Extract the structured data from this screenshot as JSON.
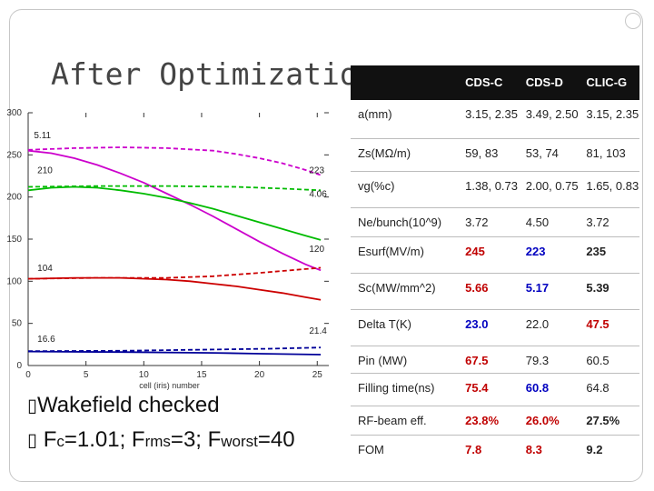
{
  "slide": {
    "title": "After Optimization",
    "bullets": [
      {
        "mark": "",
        "text": "Wakefield checked",
        "parts": null
      },
      {
        "mark": "",
        "text": null,
        "parts": [
          {
            "t": "F",
            "sub": false
          },
          {
            "t": "c",
            "sub": true
          },
          {
            "t": "=1.01; F",
            "sub": false
          },
          {
            "t": "rms",
            "sub": true
          },
          {
            "t": "=3; F",
            "sub": false
          },
          {
            "t": "worst",
            "sub": true
          },
          {
            "t": "=40",
            "sub": false
          }
        ]
      }
    ]
  },
  "table": {
    "headers": [
      "",
      "CDS-C",
      "CDS-D",
      "CLIC-G"
    ],
    "rows": [
      {
        "label": "a(mm)",
        "values": [
          "3.15, 2.35",
          "3.49, 2.50",
          "3.15, 2.35"
        ],
        "styles": [
          "",
          "",
          ""
        ],
        "height": 42
      },
      {
        "label": "Zs(MΩ/m)",
        "values": [
          "59, 83",
          "53, 74",
          "81, 103"
        ],
        "styles": [
          "",
          "",
          ""
        ],
        "height": 36
      },
      {
        "label": "vg(%c)",
        "values": [
          "1.38, 0.73",
          "2.00, 0.75",
          "1.65, 0.83"
        ],
        "styles": [
          "",
          "",
          ""
        ],
        "height": 40
      },
      {
        "label": "Ne/bunch(10^9)",
        "values": [
          "3.72",
          "4.50",
          "3.72"
        ],
        "styles": [
          "",
          "",
          ""
        ],
        "height": 32
      },
      {
        "label": "Esurf(MV/m)",
        "values": [
          "245",
          "223",
          "235"
        ],
        "styles": [
          "red",
          "blue",
          "blk"
        ],
        "height": 40
      },
      {
        "label": "Sc(MW/mm^2)",
        "values": [
          "5.66",
          "5.17",
          "5.39"
        ],
        "styles": [
          "red",
          "blue",
          "blk"
        ],
        "height": 40
      },
      {
        "label": "Delta T(K)",
        "values": [
          "23.0",
          "22.0",
          "47.5"
        ],
        "styles": [
          "blue",
          "",
          "red"
        ],
        "height": 40
      },
      {
        "label": "Pin (MW)",
        "values": [
          "67.5",
          "79.3",
          "60.5"
        ],
        "styles": [
          "red",
          "",
          ""
        ],
        "height": 30
      },
      {
        "label": "Filling time(ns)",
        "values": [
          "75.4",
          "60.8",
          "64.8"
        ],
        "styles": [
          "red",
          "blue",
          ""
        ],
        "height": 36
      },
      {
        "label": "RF-beam eff.",
        "values": [
          "23.8%",
          "26.0%",
          "27.5%"
        ],
        "styles": [
          "red",
          "red",
          "blk"
        ],
        "height": 32
      },
      {
        "label": "FOM",
        "values": [
          "7.8",
          "8.3",
          "9.2"
        ],
        "styles": [
          "red",
          "red",
          "blk"
        ],
        "height": 40
      }
    ]
  },
  "chart_data": {
    "type": "line",
    "title": "",
    "xlabel": "cell (iris) number",
    "ylabel": "",
    "xlim": [
      0,
      26
    ],
    "ylim": [
      0,
      300
    ],
    "xticks": [
      0,
      5,
      10,
      15,
      20,
      25
    ],
    "yticks": [
      0,
      50,
      100,
      150,
      200,
      250,
      300
    ],
    "series": [
      {
        "color": "#cc00cc",
        "dash": false,
        "x": [
          0,
          2,
          4,
          6,
          8,
          10,
          12,
          14,
          16,
          18,
          20,
          22,
          24,
          25.3
        ],
        "y": [
          255,
          252,
          246,
          238,
          228,
          217,
          204,
          191,
          177,
          162,
          147,
          133,
          120,
          113
        ]
      },
      {
        "color": "#cc00cc",
        "dash": true,
        "x": [
          0,
          4,
          8,
          12,
          16,
          18,
          20,
          22,
          24,
          25.3
        ],
        "y": [
          256,
          258,
          259,
          258,
          255,
          251,
          246,
          240,
          232,
          226
        ]
      },
      {
        "color": "#00bb00",
        "dash": false,
        "x": [
          0,
          2,
          4,
          6,
          8,
          10,
          12,
          14,
          16,
          18,
          20,
          22,
          24,
          25.3
        ],
        "y": [
          208,
          211,
          212,
          211,
          208,
          204,
          199,
          193,
          186,
          178,
          170,
          162,
          154,
          149
        ]
      },
      {
        "color": "#00bb00",
        "dash": true,
        "x": [
          0,
          6,
          12,
          18,
          22,
          25.3
        ],
        "y": [
          212,
          213,
          213,
          212,
          210,
          208
        ]
      },
      {
        "color": "#cc0000",
        "dash": false,
        "x": [
          0,
          4,
          8,
          12,
          14,
          16,
          18,
          20,
          22,
          24,
          25.3
        ],
        "y": [
          103,
          104,
          104,
          102,
          100,
          97,
          94,
          90,
          86,
          81,
          78
        ]
      },
      {
        "color": "#cc0000",
        "dash": true,
        "x": [
          0,
          6,
          12,
          16,
          20,
          25.3
        ],
        "y": [
          103,
          104,
          104,
          106,
          110,
          116
        ]
      },
      {
        "color": "#000099",
        "dash": false,
        "x": [
          0,
          8,
          16,
          20,
          25.3
        ],
        "y": [
          16.6,
          16,
          15,
          14,
          13
        ]
      },
      {
        "color": "#000099",
        "dash": true,
        "x": [
          0,
          8,
          16,
          21,
          25.3
        ],
        "y": [
          17,
          17.5,
          19,
          20,
          21.4
        ]
      }
    ],
    "annotations": [
      {
        "text": "5.11",
        "x": 0.5,
        "y": 270
      },
      {
        "text": "210",
        "x": 0.8,
        "y": 228
      },
      {
        "text": "223",
        "x": 24.3,
        "y": 228
      },
      {
        "text": "4.06",
        "x": 24.3,
        "y": 200
      },
      {
        "text": "120",
        "x": 24.3,
        "y": 135
      },
      {
        "text": "104",
        "x": 0.8,
        "y": 112
      },
      {
        "text": "16.6",
        "x": 0.8,
        "y": 28
      },
      {
        "text": "21.4",
        "x": 24.3,
        "y": 38
      }
    ]
  }
}
